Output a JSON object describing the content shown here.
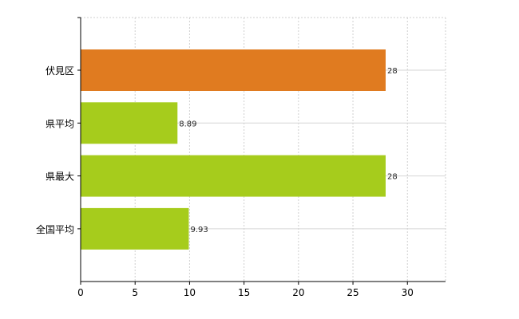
{
  "chart_data": {
    "type": "bar",
    "orientation": "horizontal",
    "categories": [
      "伏見区",
      "県平均",
      "県最大",
      "全国平均"
    ],
    "values": [
      28,
      8.89,
      28,
      9.93
    ],
    "value_labels": [
      "28",
      "8.89",
      "28",
      "9.93"
    ],
    "x_ticks": [
      "0",
      "5",
      "10",
      "15",
      "20",
      "25",
      "30"
    ],
    "xlim": [
      0,
      33.5
    ],
    "grid": true,
    "colors": [
      "#e07b20",
      "#a6cc1c",
      "#a6cc1c",
      "#a6cc1c"
    ],
    "title": "",
    "xlabel": "",
    "ylabel": ""
  }
}
